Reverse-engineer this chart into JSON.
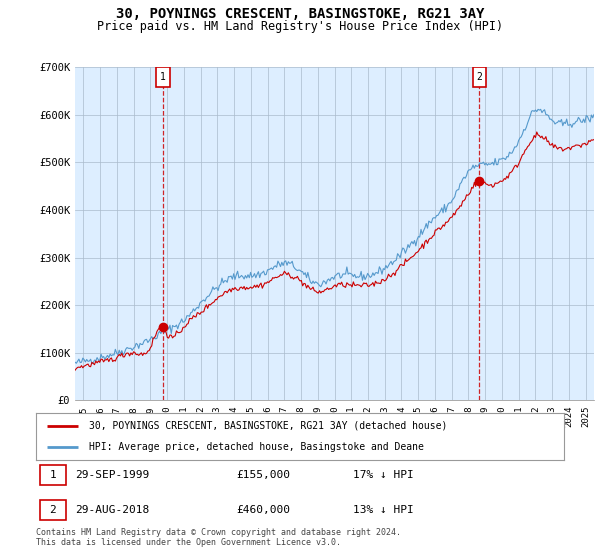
{
  "title": "30, POYNINGS CRESCENT, BASINGSTOKE, RG21 3AY",
  "subtitle": "Price paid vs. HM Land Registry's House Price Index (HPI)",
  "ylim": [
    0,
    700000
  ],
  "yticks": [
    0,
    100000,
    200000,
    300000,
    400000,
    500000,
    600000,
    700000
  ],
  "ytick_labels": [
    "£0",
    "£100K",
    "£200K",
    "£300K",
    "£400K",
    "£500K",
    "£600K",
    "£700K"
  ],
  "background_color": "#ffffff",
  "plot_bg_color": "#ddeeff",
  "grid_color": "#aabbcc",
  "hpi_color": "#5599cc",
  "price_color": "#cc0000",
  "marker1_date": 1999.75,
  "marker1_price": 155000,
  "marker2_date": 2018.66,
  "marker2_price": 460000,
  "legend_line1": "30, POYNINGS CRESCENT, BASINGSTOKE, RG21 3AY (detached house)",
  "legend_line2": "HPI: Average price, detached house, Basingstoke and Deane",
  "table_rows": [
    {
      "num": "1",
      "date": "29-SEP-1999",
      "price": "£155,000",
      "hpi": "17% ↓ HPI"
    },
    {
      "num": "2",
      "date": "29-AUG-2018",
      "price": "£460,000",
      "hpi": "13% ↓ HPI"
    }
  ],
  "footer": "Contains HM Land Registry data © Crown copyright and database right 2024.\nThis data is licensed under the Open Government Licence v3.0.",
  "xmin": 1994.5,
  "xmax": 2025.5
}
